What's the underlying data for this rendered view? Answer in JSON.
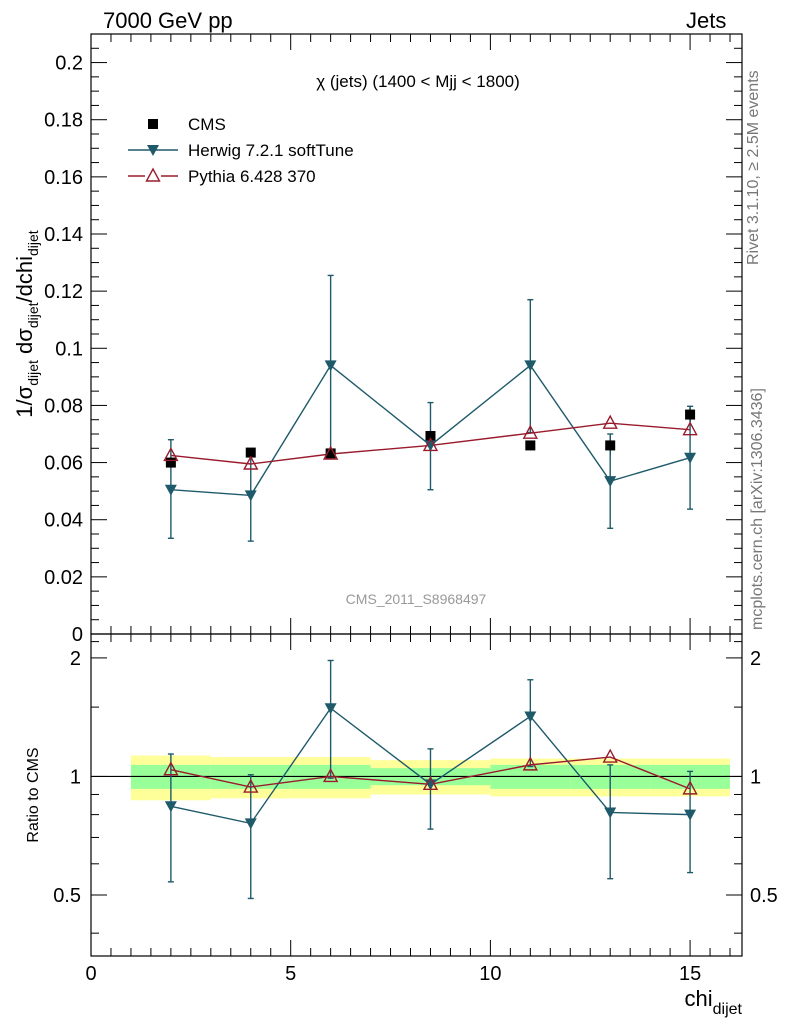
{
  "header": {
    "left": "7000 GeV pp",
    "right": "Jets"
  },
  "side_labels": {
    "rivet": "Rivet 3.1.10, ≥ 2.5M events",
    "mcplots": "mcplots.cern.ch [arXiv:1306.3436]"
  },
  "chart_data": {
    "type": "scatter",
    "title": "χ (jets) (1400 < Mjj < 1800)",
    "watermark": "CMS_2011_S8968497",
    "xlabel": {
      "main": "chi",
      "sub": "dijet"
    },
    "ylabel": {
      "parts": [
        "1/σ",
        "dijet",
        " dσ",
        "dijet",
        "/dchi",
        "dijet"
      ]
    },
    "ratio_ylabel": "Ratio to CMS",
    "xlim": [
      0,
      16.3
    ],
    "ylim": [
      0,
      0.21
    ],
    "ratio_ylim": [
      0.35,
      2.3
    ],
    "x_ticks": [
      0,
      5,
      10,
      15
    ],
    "x_tick_labels": [
      "0",
      "5",
      "10",
      "15"
    ],
    "y_ticks": [
      0,
      0.02,
      0.04,
      0.06,
      0.08,
      0.1,
      0.12,
      0.14,
      0.16,
      0.18,
      0.2
    ],
    "y_tick_labels": [
      "0",
      "0.02",
      "0.04",
      "0.06",
      "0.08",
      "0.1",
      "0.12",
      "0.14",
      "0.16",
      "0.18",
      "0.2"
    ],
    "ratio_ticks": [
      0.5,
      1,
      2
    ],
    "ratio_tick_labels": [
      "0.5",
      "1",
      "2"
    ],
    "legend_position": "top-left",
    "bins": [
      [
        1,
        3
      ],
      [
        3,
        5
      ],
      [
        5,
        7
      ],
      [
        7,
        10
      ],
      [
        10,
        12
      ],
      [
        12,
        14
      ],
      [
        14,
        16
      ]
    ],
    "x": [
      2,
      4,
      6,
      8.5,
      11,
      13,
      15
    ],
    "series": [
      {
        "name": "CMS",
        "marker": "square",
        "color": "#000000",
        "values": [
          0.06,
          0.0635,
          0.0632,
          0.0693,
          0.066,
          0.066,
          0.0768
        ],
        "errors": [
          0.0015,
          0.0015,
          0.0015,
          0.0018,
          0.0015,
          0.0035,
          0.0025
        ],
        "ratio_band_green": [
          0.07,
          0.07,
          0.07,
          0.05,
          0.07,
          0.07,
          0.07
        ],
        "ratio_band_yellow": [
          0.13,
          0.12,
          0.12,
          0.1,
          0.11,
          0.11,
          0.11
        ]
      },
      {
        "name": "Herwig 7.2.1 softTune",
        "marker": "triangle-down-filled",
        "color": "#1e5a6a",
        "values": [
          0.0505,
          0.0485,
          0.094,
          0.066,
          0.094,
          0.0535,
          0.0617
        ],
        "errors_low": [
          0.017,
          0.016,
          0.0315,
          0.0155,
          0.0235,
          0.0165,
          0.018
        ],
        "errors_high": [
          0.0175,
          0.016,
          0.0315,
          0.015,
          0.023,
          0.0165,
          0.018
        ],
        "ratio": [
          0.84,
          0.76,
          1.49,
          0.955,
          1.42,
          0.81,
          0.8
        ],
        "ratio_err_low": [
          0.3,
          0.27,
          0.5,
          0.22,
          0.36,
          0.26,
          0.23
        ],
        "ratio_err_high": [
          0.3,
          0.25,
          0.48,
          0.22,
          0.34,
          0.26,
          0.23
        ]
      },
      {
        "name": "Pythia 6.428 370",
        "marker": "triangle-up-open",
        "color": "#9a1b2d",
        "values": [
          0.0625,
          0.0595,
          0.063,
          0.066,
          0.0703,
          0.0738,
          0.0715
        ],
        "ratio": [
          1.04,
          0.94,
          1.0,
          0.955,
          1.07,
          1.12,
          0.93
        ]
      }
    ]
  }
}
